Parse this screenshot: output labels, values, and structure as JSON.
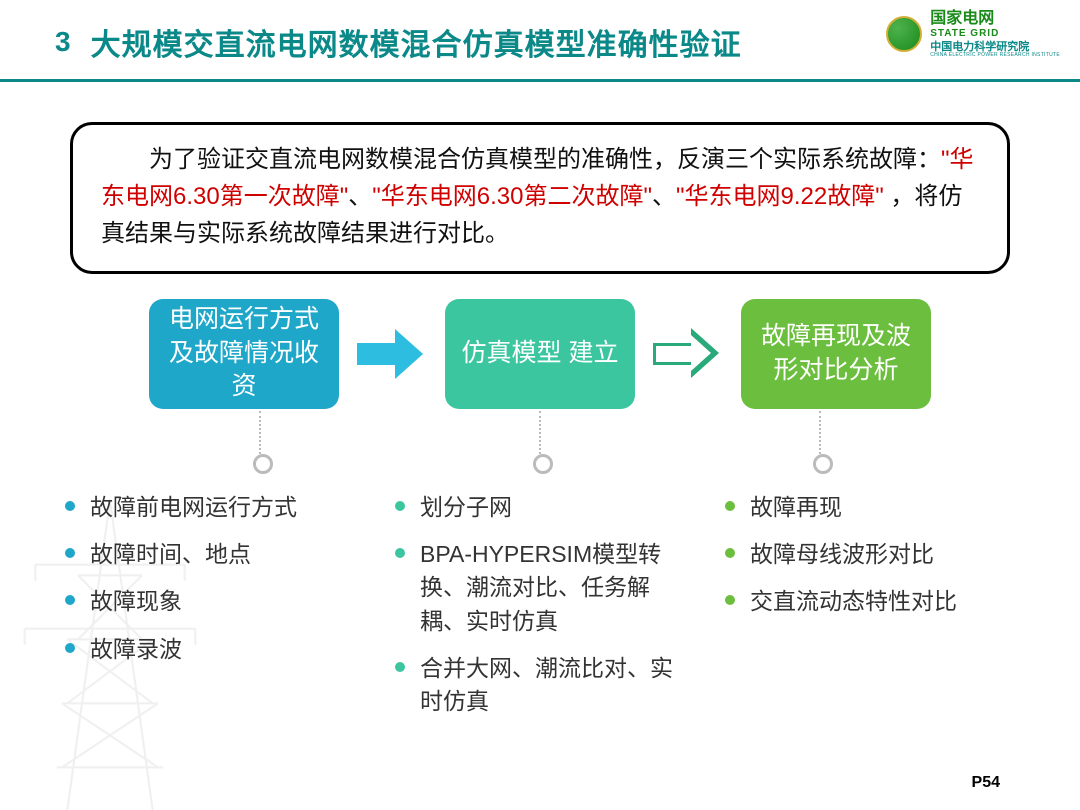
{
  "header": {
    "section_number": "3",
    "title": "大规模交直流电网数模混合仿真模型准确性验证",
    "logo": {
      "cn": "国家电网",
      "en": "STATE GRID",
      "sub_cn": "中国电力科学研究院",
      "sub_en": "CHINA ELECTRIC POWER RESEARCH INSTITUTE"
    },
    "line_color": "#0b8888",
    "title_color": "#0b8888"
  },
  "intro": {
    "pre": "　　为了验证交直流电网数模混合仿真模型的准确性，反演三个实际系统故障：",
    "f1": "\"华东电网6.30第一次故障\"",
    "sep1": "、",
    "f2": "\"华东电网6.30第二次故障\"",
    "sep2": "、",
    "f3": "\"华东电网9.22故障\"",
    "post": " ，将仿真结果与实际系统故障结果进行对比。",
    "highlight_color": "#d00000",
    "border_radius": 22
  },
  "flow": {
    "steps": [
      {
        "label": "电网运行方式及故障情况收资",
        "bg": "#1ea7c9"
      },
      {
        "label": "仿真模型\n建立",
        "bg": "#3cc6a0"
      },
      {
        "label": "故障再现及波形对比分析",
        "bg": "#6cbf3e"
      }
    ],
    "arrows": [
      {
        "style": "solid",
        "color": "#2cbde0"
      },
      {
        "style": "outline",
        "color": "#2aa97a"
      }
    ],
    "step_box": {
      "width": 190,
      "height": 110,
      "radius": 14,
      "fontsize": 25
    }
  },
  "details": {
    "columns": [
      {
        "bullet_color": "#1ea7c9",
        "items": [
          "故障前电网运行方式",
          "故障时间、地点",
          "故障现象",
          "故障录波"
        ]
      },
      {
        "bullet_color": "#3cc6a0",
        "items": [
          "划分子网",
          "BPA-HYPERSIM模型转换、潮流对比、任务解耦、实时仿真",
          "合并大网、潮流比对、实时仿真"
        ]
      },
      {
        "bullet_color": "#6cbf3e",
        "items": [
          "故障再现",
          "故障母线波形对比",
          "交直流动态特性对比"
        ]
      }
    ],
    "fontsize": 23
  },
  "page_number": "P54",
  "background": "#ffffff"
}
